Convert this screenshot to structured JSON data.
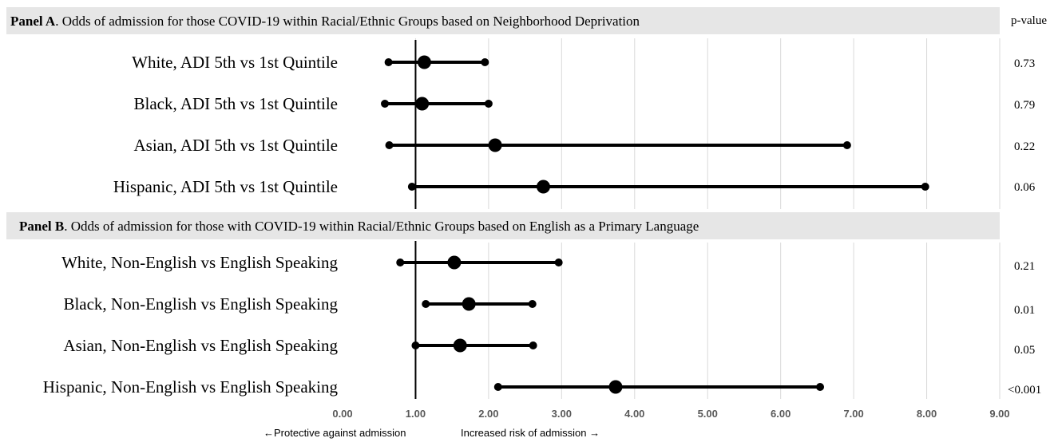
{
  "pvalue_header": "p-value",
  "chart_data": {
    "type": "forest",
    "xlim": [
      0,
      9
    ],
    "xticks": [
      "0.00",
      "1.00",
      "2.00",
      "3.00",
      "4.00",
      "5.00",
      "6.00",
      "7.00",
      "8.00",
      "9.00"
    ],
    "reference_line": 1,
    "x_annotation_left": "←Protective against admission",
    "x_annotation_right": "Increased risk of admission →",
    "panels": [
      {
        "title_bold": "Panel A",
        "title_rest": ". Odds of admission for those COVID-19 within Racial/Ethnic Groups based on Neighborhood Deprivation",
        "rows": [
          {
            "label": "White, ADI 5th vs 1st Quintile",
            "or": 1.12,
            "lo": 0.63,
            "hi": 1.95,
            "p": "0.73"
          },
          {
            "label": "Black, ADI 5th vs 1st Quintile",
            "or": 1.09,
            "lo": 0.58,
            "hi": 2.0,
            "p": "0.79"
          },
          {
            "label": "Asian, ADI 5th vs 1st Quintile",
            "or": 2.09,
            "lo": 0.64,
            "hi": 6.91,
            "p": "0.22"
          },
          {
            "label": "Hispanic, ADI 5th vs 1st Quintile",
            "or": 2.75,
            "lo": 0.95,
            "hi": 7.98,
            "p": "0.06"
          }
        ]
      },
      {
        "title_bold": "Panel B",
        "title_rest": ". Odds of admission for those with COVID-19 within Racial/Ethnic Groups based on English as a Primary Language",
        "rows": [
          {
            "label": "White, Non-English vs English Speaking",
            "or": 1.53,
            "lo": 0.79,
            "hi": 2.96,
            "p": "0.21"
          },
          {
            "label": "Black, Non-English vs English Speaking",
            "or": 1.73,
            "lo": 1.14,
            "hi": 2.6,
            "p": "0.01"
          },
          {
            "label": "Asian, Non-English vs English Speaking",
            "or": 1.61,
            "lo": 1.0,
            "hi": 2.61,
            "p": "0.05"
          },
          {
            "label": "Hispanic, Non-English vs English Speaking",
            "or": 3.74,
            "lo": 2.13,
            "hi": 6.54,
            "p": "<0.001"
          }
        ]
      }
    ]
  }
}
